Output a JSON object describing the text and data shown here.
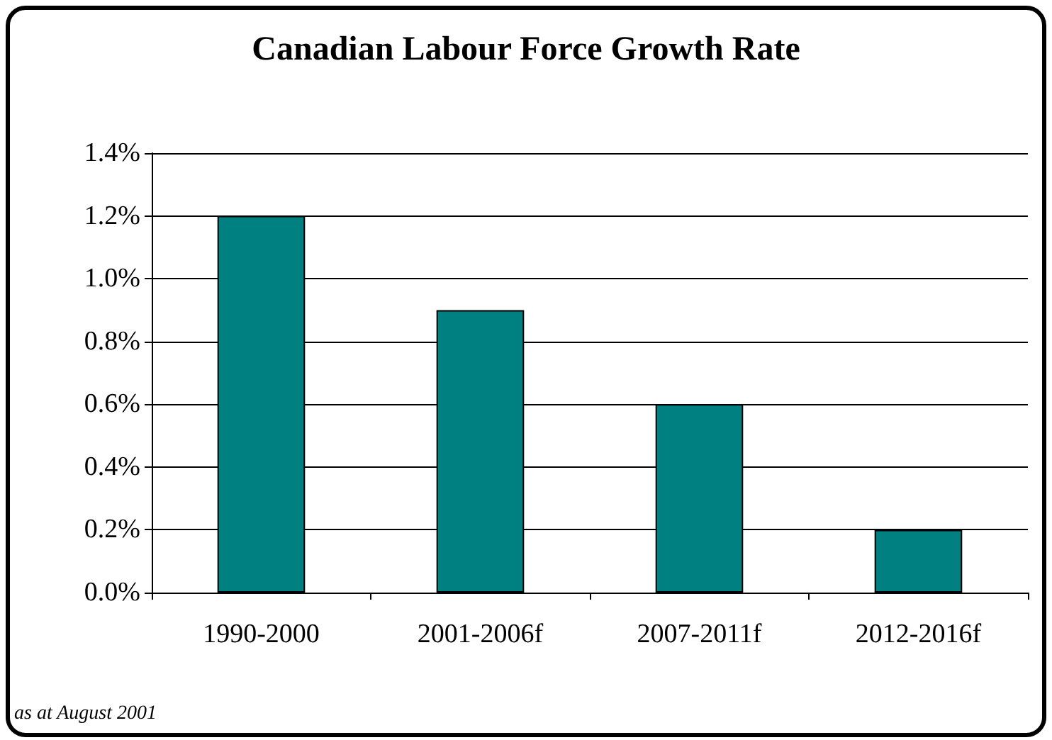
{
  "chart_data": {
    "type": "bar",
    "title": "Canadian Labour Force Growth Rate",
    "categories": [
      "1990-2000",
      "2001-2006f",
      "2007-2011f",
      "2012-2016f"
    ],
    "values": [
      1.2,
      0.9,
      0.6,
      0.2
    ],
    "color": "#008080",
    "ylim": [
      0,
      1.4
    ],
    "yticks": [
      {
        "value": 0,
        "label": "0.0%"
      },
      {
        "value": 0.2,
        "label": "0.2%"
      },
      {
        "value": 0.4,
        "label": "0.4%"
      },
      {
        "value": 0.6,
        "label": "0.6%"
      },
      {
        "value": 0.8,
        "label": "0.8%"
      },
      {
        "value": 1.0,
        "label": "1.0%"
      },
      {
        "value": 1.2,
        "label": "1.2%"
      },
      {
        "value": 1.4,
        "label": "1.4%"
      }
    ],
    "grid": "y",
    "annotations": [
      "as at August 2001"
    ]
  }
}
